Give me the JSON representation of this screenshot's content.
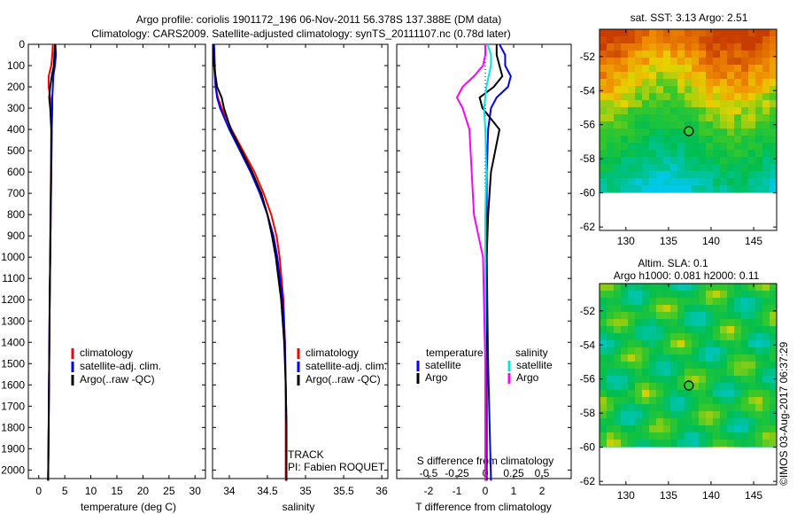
{
  "title_line1": "Argo profile: coriolis 1901172_196 06-Nov-2011 56.378S 137.388E (DM data)",
  "title_line2": "Climatology: CARS2009. Satellite-adjusted climatology: synTS_20111107.nc (0.78d later)",
  "colors": {
    "climatology": "#ff0000",
    "satellite": "#0000ff",
    "argo": "#000000",
    "salinity_sat": "#00e5e5",
    "salinity_argo": "#ff00ff"
  },
  "chart_data": [
    {
      "type": "line",
      "name": "temperature",
      "xlabel": "temperature (deg C)",
      "ylabel": "",
      "xlim": [
        -2,
        32
      ],
      "ylim": [
        2040,
        0
      ],
      "xticks": [
        0,
        5,
        10,
        15,
        20,
        25,
        30
      ],
      "yticks": [
        0,
        100,
        200,
        300,
        400,
        500,
        600,
        700,
        800,
        900,
        1000,
        1100,
        1200,
        1300,
        1400,
        1500,
        1600,
        1700,
        1800,
        1900,
        2000
      ],
      "legend": [
        "climatology",
        "satellite-adj. clim.",
        "Argo(..raw -QC)"
      ],
      "depth": [
        0,
        50,
        100,
        150,
        200,
        250,
        300,
        400,
        600,
        800,
        1000,
        1200,
        1500,
        1800,
        2050
      ],
      "series": [
        {
          "name": "climatology",
          "values": [
            2.7,
            2.6,
            2.4,
            1.9,
            1.9,
            2.2,
            2.5,
            2.5,
            2.4,
            2.3,
            2.2,
            2.1,
            2.0,
            1.9,
            1.8
          ]
        },
        {
          "name": "satellite-adj. clim.",
          "values": [
            3.2,
            3.3,
            3.1,
            2.8,
            2.7,
            2.6,
            2.6,
            2.5,
            2.4,
            2.3,
            2.2,
            2.1,
            2.0,
            1.9,
            1.8
          ]
        },
        {
          "name": "Argo(..raw -QC)",
          "values": [
            3.1,
            3.0,
            2.9,
            2.5,
            2.2,
            2.0,
            2.2,
            2.4,
            2.35,
            2.25,
            2.2,
            2.1,
            2.0,
            1.9,
            1.8
          ]
        }
      ]
    },
    {
      "type": "line",
      "name": "salinity",
      "xlabel": "salinity",
      "xlim": [
        33.78,
        36.08
      ],
      "ylim": [
        2040,
        0
      ],
      "xticks": [
        34,
        34.5,
        35,
        35.5,
        36
      ],
      "legend": [
        "climatology",
        "satellite-adj. clim.",
        "Argo(..raw -QC)"
      ],
      "annotations": [
        "TRACK",
        "PI: Fabien ROQUET"
      ],
      "depth": [
        0,
        100,
        200,
        250,
        300,
        400,
        500,
        600,
        700,
        800,
        900,
        1000,
        1200,
        1400,
        1600,
        1800,
        2050
      ],
      "series": [
        {
          "name": "climatology",
          "values": [
            33.79,
            33.8,
            33.82,
            33.85,
            33.9,
            34.03,
            34.18,
            34.33,
            34.45,
            34.55,
            34.62,
            34.66,
            34.71,
            34.73,
            34.74,
            34.74,
            34.74
          ]
        },
        {
          "name": "satellite-adj. clim.",
          "values": [
            33.8,
            33.81,
            33.82,
            33.84,
            33.88,
            34.0,
            34.14,
            34.28,
            34.4,
            34.5,
            34.58,
            34.63,
            34.7,
            34.73,
            34.74,
            34.75,
            34.75
          ]
        },
        {
          "name": "Argo(..raw -QC)",
          "values": [
            33.79,
            33.8,
            33.84,
            33.9,
            33.93,
            34.02,
            34.16,
            34.3,
            34.42,
            34.5,
            34.56,
            34.61,
            34.68,
            34.72,
            34.74,
            34.75,
            34.75
          ]
        }
      ]
    },
    {
      "type": "line",
      "name": "difference",
      "xlabel": "T difference from climatology",
      "xlabel2": "S difference from climatology",
      "xlim": [
        -3.125,
        3.03
      ],
      "xticks": [
        -2,
        -1,
        0,
        1,
        2
      ],
      "xticks2": [
        -0.5,
        -0.25,
        0,
        0.25,
        0.5
      ],
      "ylim": [
        2040,
        0
      ],
      "legend_headers": [
        "temperature",
        "salinity"
      ],
      "legend": [
        "satellite",
        "Argo",
        "satellite",
        "Argo"
      ],
      "depth": [
        0,
        50,
        100,
        150,
        200,
        250,
        300,
        400,
        600,
        800,
        1000,
        1500,
        2050
      ],
      "series": [
        {
          "name": "temperature satellite",
          "values": [
            0.5,
            0.7,
            0.7,
            0.9,
            0.8,
            0.4,
            0.2,
            0.1,
            0.05,
            0.05,
            0.05,
            0.1,
            0.2
          ]
        },
        {
          "name": "temperature Argo",
          "values": [
            0.4,
            0.4,
            0.5,
            0.6,
            0.3,
            -0.2,
            -0.1,
            0.5,
            0.2,
            0.1,
            0.05,
            0.05,
            0.05
          ]
        },
        {
          "name": "salinity satellite",
          "values": [
            0.02,
            0.05,
            0.05,
            0.03,
            0.01,
            0.0,
            -0.01,
            0.0,
            0.01,
            0.0,
            0.0,
            0.0,
            0.0
          ]
        },
        {
          "name": "salinity Argo",
          "values": [
            0.0,
            0.0,
            -0.02,
            -0.1,
            -0.2,
            -0.25,
            -0.2,
            -0.14,
            -0.12,
            -0.1,
            -0.02,
            0.0,
            0.0
          ]
        }
      ]
    },
    {
      "type": "heatmap",
      "name": "sst_map",
      "title": "sat. SST: 3.13 Argo: 2.51",
      "xlim": [
        126.9,
        147.7
      ],
      "ylim": [
        -62.2,
        -50.4
      ],
      "data_extent_lat": [
        -60,
        -50.4
      ],
      "xticks": [
        130,
        135,
        140,
        145
      ],
      "yticks": [
        -52,
        -54,
        -56,
        -58,
        -60,
        -62
      ],
      "marker": {
        "lon": 137.388,
        "lat": -56.378
      }
    },
    {
      "type": "heatmap",
      "name": "sla_map",
      "title": "Altim. SLA: 0.1",
      "subtitle": "Argo h1000: 0.081 h2000: 0.11",
      "xlim": [
        126.9,
        147.7
      ],
      "ylim": [
        -62.2,
        -50.4
      ],
      "data_extent_lat": [
        -60,
        -50.4
      ],
      "xticks": [
        130,
        135,
        140,
        145
      ],
      "yticks": [
        -52,
        -54,
        -56,
        -58,
        -60,
        -62
      ],
      "marker": {
        "lon": 137.388,
        "lat": -56.378
      }
    }
  ],
  "credit": "©IMOS 03-Aug-2017 06:37:29"
}
